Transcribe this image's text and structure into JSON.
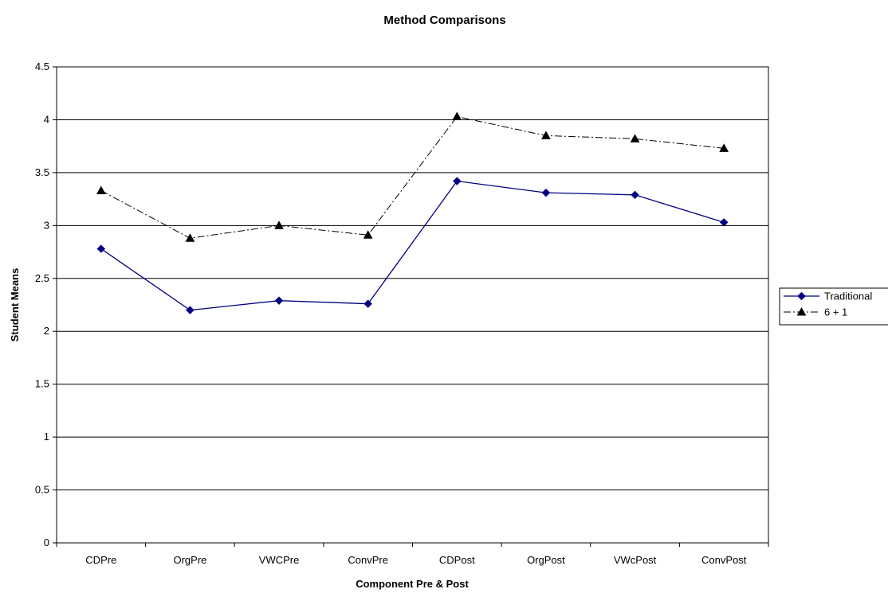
{
  "chart_data": {
    "type": "line",
    "title": "Method Comparisons",
    "xlabel": "Component Pre & Post",
    "ylabel": "Student Means",
    "categories": [
      "CDPre",
      "OrgPre",
      "VWCPre",
      "ConvPre",
      "CDPost",
      "OrgPost",
      "VWcPost",
      "ConvPost"
    ],
    "ylim": [
      0,
      4.5
    ],
    "yticks": [
      "0",
      "0.5",
      "1",
      "1.5",
      "2",
      "2.5",
      "3",
      "3.5",
      "4",
      "4.5"
    ],
    "grid": true,
    "legend_position": "right",
    "series": [
      {
        "name": "Traditional",
        "values": [
          2.78,
          2.2,
          2.29,
          2.26,
          3.42,
          3.31,
          3.29,
          3.03
        ],
        "color": "#000080",
        "marker": "diamond",
        "line_style": "solid"
      },
      {
        "name": "6 + 1",
        "values": [
          3.33,
          2.88,
          3.0,
          2.91,
          4.03,
          3.85,
          3.82,
          3.73
        ],
        "color": "#000000",
        "marker": "triangle",
        "line_style": "dash-dot"
      }
    ]
  }
}
